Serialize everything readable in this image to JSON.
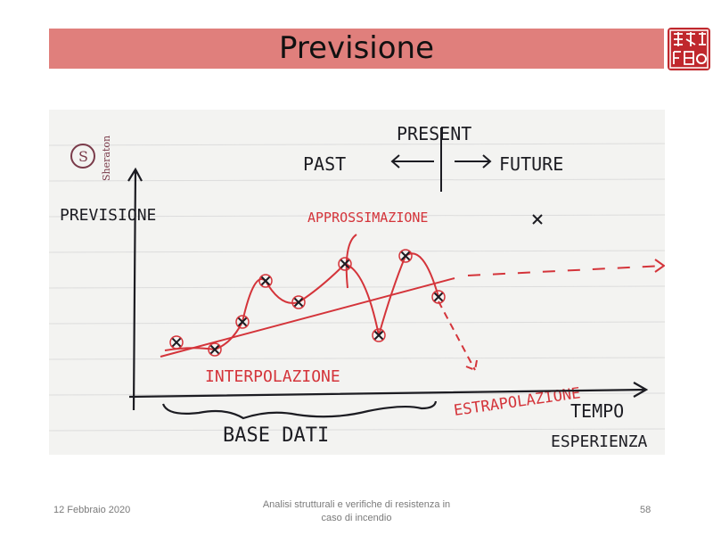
{
  "slide": {
    "title": "Previsione",
    "title_bar_color": "#e07f7c",
    "seal": {
      "icon": "red-seal-logo",
      "color": "#c0282d"
    }
  },
  "sketch": {
    "logo_text": "Sheraton",
    "present": "PRESENT",
    "past": "PAST",
    "future": "FUTURE",
    "y_axis_label": "PREVISIONE",
    "approx": "APPROSSIMAZIONE",
    "interp": "INTERPOLAZIONE",
    "extrap": "ESTRAPOLAZIONE",
    "x_axis_label_top": "TEMPO",
    "x_axis_label_bottom": "ESPERIENZA",
    "base": "BASE DATI",
    "ink_color": "#1c1c22",
    "red_ink_color": "#d4343a"
  },
  "footer": {
    "date": "12 Febbraio 2020",
    "center_line1": "Analisi strutturali e verifiche di resistenza in",
    "center_line2": "caso di incendio",
    "page": "58"
  }
}
